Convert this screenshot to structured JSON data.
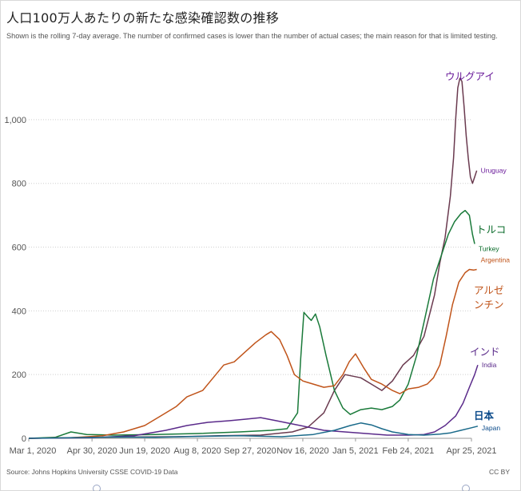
{
  "chart_data": {
    "type": "line",
    "title": "人口100万人あたりの新たな感染確認数の推移",
    "subtitle": "Shown is the rolling 7-day average. The number of confirmed cases is lower than the number of actual cases; the main reason for that is limited testing.",
    "source": "Source: Johns Hopkins University CSSE COVID-19 Data",
    "license": "CC BY",
    "x_ticks": [
      "Mar 1, 2020",
      "Apr 30, 2020",
      "Jun 19, 2020",
      "Aug 8, 2020",
      "Sep 27, 2020",
      "Nov 16, 2020",
      "Jan 5, 2021",
      "Feb 24, 2021",
      "Apr 25, 2021"
    ],
    "y_ticks": [
      "0",
      "200",
      "400",
      "600",
      "800",
      "1,000"
    ],
    "ylim": [
      0,
      1150
    ],
    "x_range_days": [
      0,
      420
    ],
    "grid": "horizontal-dotted",
    "series": [
      {
        "name": "Uruguay",
        "label_ja": "ウルグアイ",
        "color": "#6a3a4f",
        "label_color": "#6a1b9a",
        "points": [
          [
            0,
            0
          ],
          [
            60,
            3
          ],
          [
            100,
            4
          ],
          [
            140,
            5
          ],
          [
            180,
            8
          ],
          [
            220,
            10
          ],
          [
            250,
            20
          ],
          [
            265,
            35
          ],
          [
            280,
            80
          ],
          [
            290,
            150
          ],
          [
            300,
            200
          ],
          [
            315,
            190
          ],
          [
            325,
            170
          ],
          [
            335,
            150
          ],
          [
            345,
            180
          ],
          [
            355,
            230
          ],
          [
            365,
            260
          ],
          [
            375,
            320
          ],
          [
            385,
            450
          ],
          [
            390,
            550
          ],
          [
            395,
            630
          ],
          [
            400,
            760
          ],
          [
            403,
            880
          ],
          [
            405,
            1000
          ],
          [
            407,
            1100
          ],
          [
            409,
            1130
          ],
          [
            411,
            1120
          ],
          [
            413,
            1040
          ],
          [
            415,
            950
          ],
          [
            417,
            880
          ],
          [
            419,
            820
          ],
          [
            421,
            800
          ],
          [
            423,
            820
          ],
          [
            425,
            840
          ]
        ]
      },
      {
        "name": "Turkey",
        "label_ja": "トルコ",
        "color": "#1a7a3a",
        "label_color": "#0a6b2a",
        "points": [
          [
            0,
            0
          ],
          [
            25,
            3
          ],
          [
            40,
            20
          ],
          [
            55,
            12
          ],
          [
            80,
            10
          ],
          [
            120,
            12
          ],
          [
            160,
            15
          ],
          [
            200,
            20
          ],
          [
            230,
            25
          ],
          [
            245,
            30
          ],
          [
            255,
            80
          ],
          [
            258,
            250
          ],
          [
            261,
            395
          ],
          [
            265,
            380
          ],
          [
            268,
            370
          ],
          [
            272,
            390
          ],
          [
            276,
            350
          ],
          [
            282,
            260
          ],
          [
            290,
            150
          ],
          [
            298,
            95
          ],
          [
            305,
            75
          ],
          [
            315,
            90
          ],
          [
            325,
            95
          ],
          [
            335,
            90
          ],
          [
            345,
            100
          ],
          [
            352,
            120
          ],
          [
            360,
            170
          ],
          [
            368,
            260
          ],
          [
            376,
            380
          ],
          [
            384,
            500
          ],
          [
            392,
            580
          ],
          [
            398,
            640
          ],
          [
            404,
            680
          ],
          [
            410,
            705
          ],
          [
            414,
            715
          ],
          [
            418,
            700
          ],
          [
            421,
            640
          ],
          [
            423,
            610
          ]
        ]
      },
      {
        "name": "Argentina",
        "label_ja": "アルゼンチン",
        "color": "#c0541a",
        "label_color": "#c0541a",
        "points": [
          [
            0,
            0
          ],
          [
            40,
            2
          ],
          [
            70,
            8
          ],
          [
            90,
            20
          ],
          [
            110,
            40
          ],
          [
            125,
            70
          ],
          [
            140,
            100
          ],
          [
            150,
            130
          ],
          [
            165,
            150
          ],
          [
            175,
            190
          ],
          [
            185,
            230
          ],
          [
            195,
            240
          ],
          [
            205,
            270
          ],
          [
            215,
            300
          ],
          [
            225,
            325
          ],
          [
            230,
            335
          ],
          [
            238,
            310
          ],
          [
            245,
            260
          ],
          [
            252,
            200
          ],
          [
            260,
            180
          ],
          [
            270,
            170
          ],
          [
            280,
            160
          ],
          [
            290,
            165
          ],
          [
            298,
            200
          ],
          [
            304,
            240
          ],
          [
            310,
            265
          ],
          [
            318,
            220
          ],
          [
            325,
            185
          ],
          [
            335,
            170
          ],
          [
            345,
            150
          ],
          [
            352,
            140
          ],
          [
            360,
            155
          ],
          [
            370,
            160
          ],
          [
            378,
            170
          ],
          [
            384,
            190
          ],
          [
            390,
            230
          ],
          [
            396,
            320
          ],
          [
            402,
            420
          ],
          [
            408,
            490
          ],
          [
            414,
            520
          ],
          [
            418,
            530
          ],
          [
            422,
            528
          ],
          [
            425,
            530
          ]
        ]
      },
      {
        "name": "India",
        "label_ja": "インド",
        "color": "#5a2a8a",
        "label_color": "#5a2a8a",
        "points": [
          [
            0,
            0
          ],
          [
            60,
            2
          ],
          [
            100,
            8
          ],
          [
            130,
            25
          ],
          [
            150,
            40
          ],
          [
            170,
            50
          ],
          [
            190,
            55
          ],
          [
            205,
            60
          ],
          [
            220,
            65
          ],
          [
            235,
            55
          ],
          [
            250,
            45
          ],
          [
            265,
            35
          ],
          [
            280,
            25
          ],
          [
            300,
            20
          ],
          [
            320,
            15
          ],
          [
            340,
            10
          ],
          [
            360,
            10
          ],
          [
            375,
            12
          ],
          [
            385,
            20
          ],
          [
            395,
            40
          ],
          [
            405,
            70
          ],
          [
            412,
            110
          ],
          [
            418,
            160
          ],
          [
            423,
            200
          ],
          [
            426,
            230
          ]
        ]
      },
      {
        "name": "Japan",
        "label_ja": "日本",
        "color": "#1a6a8a",
        "label_color": "#0a4a8a",
        "points": [
          [
            0,
            0
          ],
          [
            40,
            2
          ],
          [
            80,
            4
          ],
          [
            120,
            3
          ],
          [
            160,
            6
          ],
          [
            200,
            8
          ],
          [
            240,
            5
          ],
          [
            270,
            12
          ],
          [
            290,
            25
          ],
          [
            305,
            40
          ],
          [
            315,
            48
          ],
          [
            325,
            42
          ],
          [
            335,
            30
          ],
          [
            345,
            20
          ],
          [
            360,
            12
          ],
          [
            375,
            10
          ],
          [
            390,
            13
          ],
          [
            400,
            17
          ],
          [
            410,
            25
          ],
          [
            420,
            33
          ],
          [
            426,
            38
          ]
        ]
      }
    ]
  }
}
